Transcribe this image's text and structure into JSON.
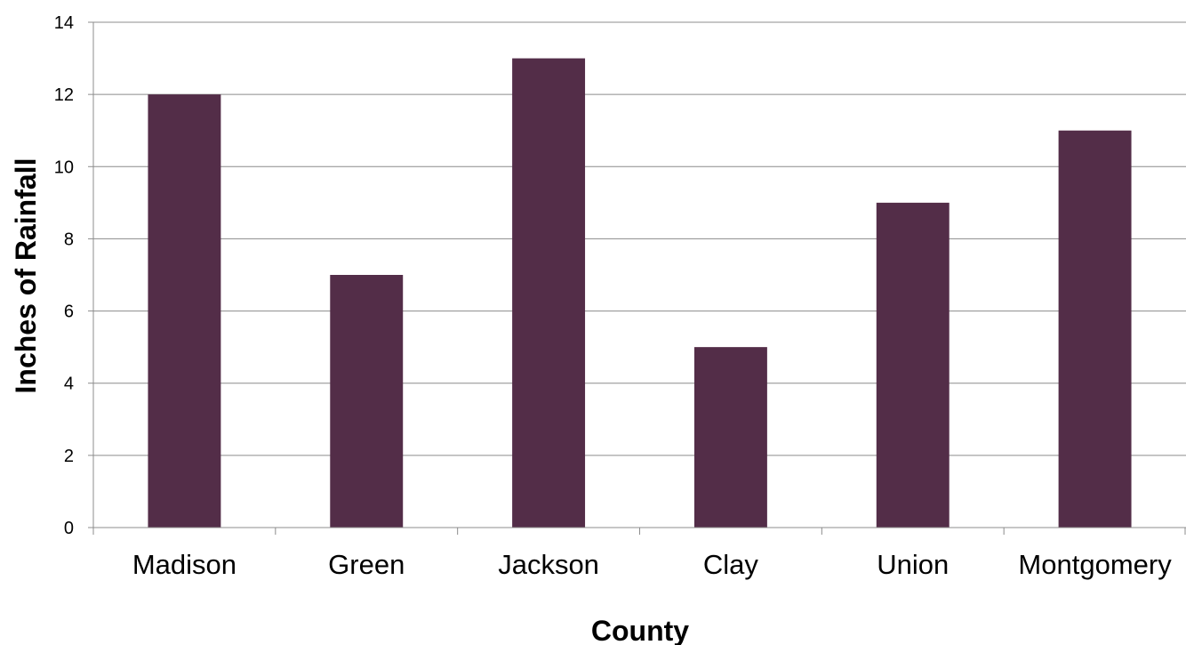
{
  "chart_data": {
    "type": "bar",
    "title": "",
    "xlabel": "County",
    "ylabel": "Inches of Rainfall",
    "categories": [
      "Madison",
      "Green",
      "Jackson",
      "Clay",
      "Union",
      "Montgomery"
    ],
    "values": [
      12,
      7,
      13,
      5,
      9,
      11
    ],
    "ylim": [
      0,
      14
    ],
    "yticks": [
      0,
      2,
      4,
      6,
      8,
      10,
      12,
      14
    ],
    "grid": true,
    "legend": "none",
    "colors": {
      "bar": "#532D48",
      "grid": "#8C8C8C",
      "axis": "#8C8C8C"
    }
  }
}
